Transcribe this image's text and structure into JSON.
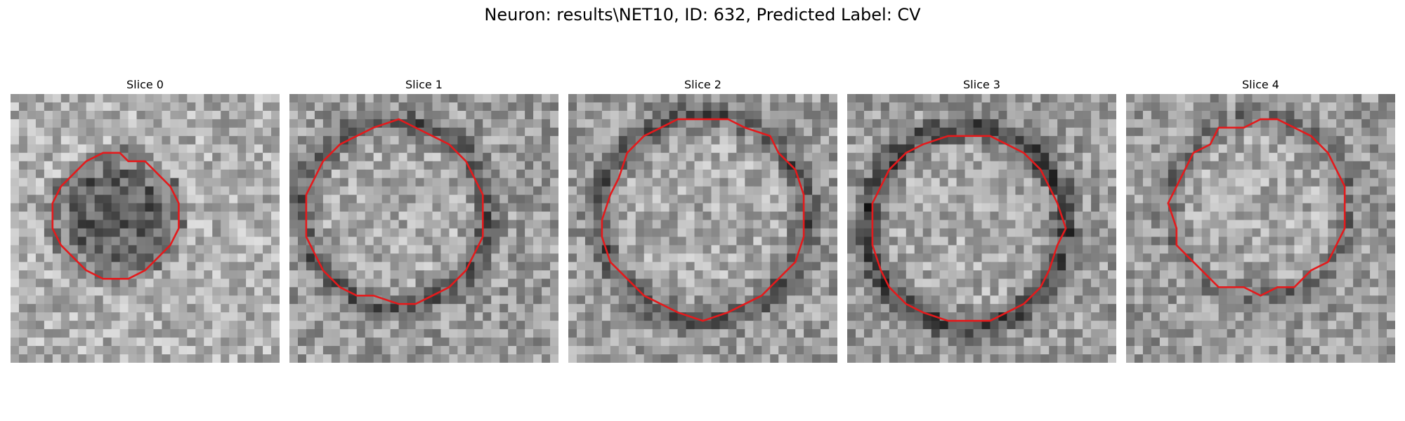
{
  "figure": {
    "title": "Neuron: results\\NET10, ID: 632, Predicted Label: CV"
  },
  "slices": [
    {
      "label": "Slice 0"
    },
    {
      "label": "Slice 1"
    },
    {
      "label": "Slice 2"
    },
    {
      "label": "Slice 3"
    },
    {
      "label": "Slice 4"
    }
  ],
  "colors": {
    "contour": "#e41a1c",
    "background": "#ffffff"
  }
}
